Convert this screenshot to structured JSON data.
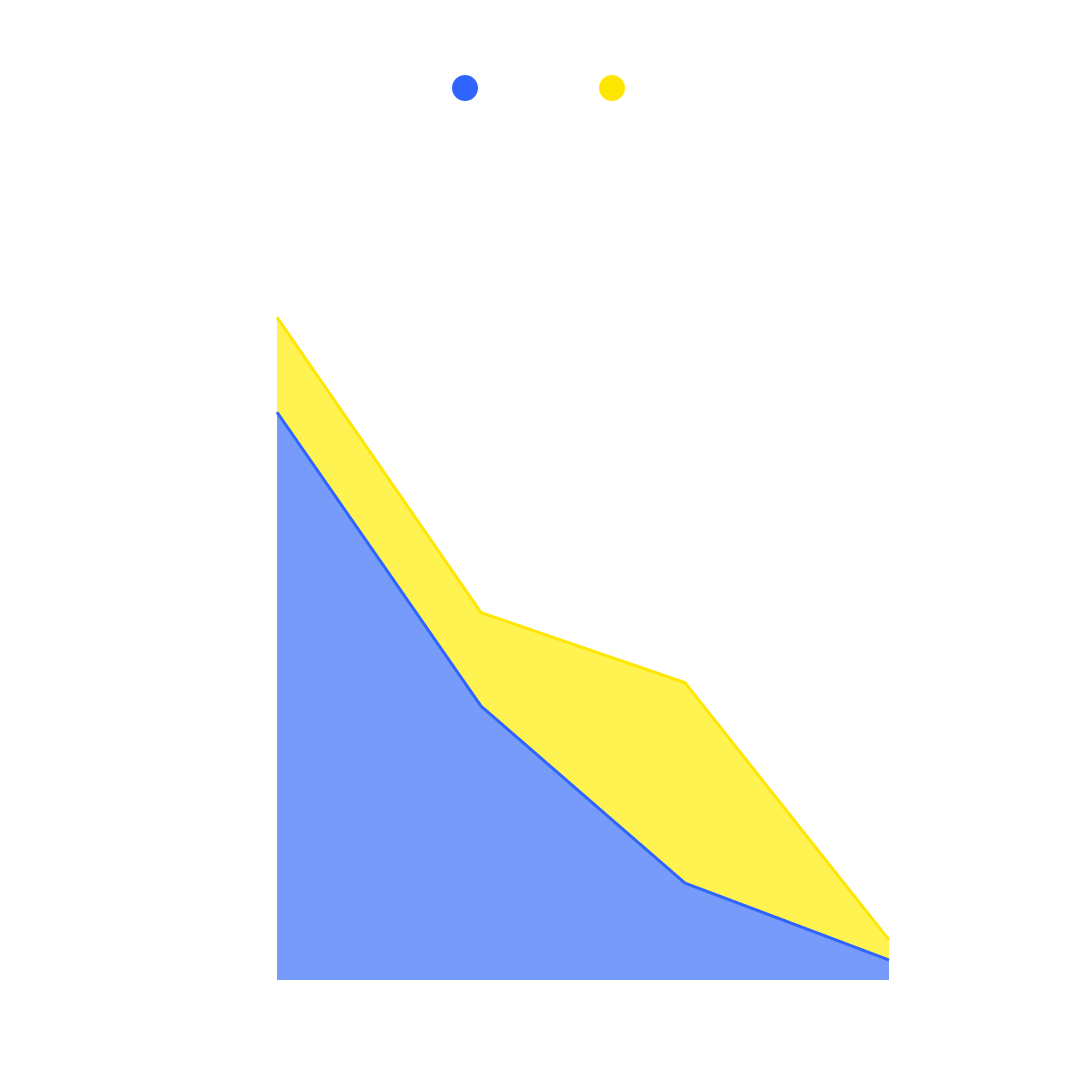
{
  "chart_data": {
    "type": "area",
    "stacked": true,
    "x": [
      0,
      1,
      2,
      3
    ],
    "ylim": [
      0,
      100
    ],
    "grid": false,
    "legend_position": "top-center",
    "series": [
      {
        "values": [
          85,
          41,
          14.5,
          3
        ],
        "color": "#2f64ff",
        "fill": "#769bfb"
      },
      {
        "values": [
          14.2,
          14,
          30,
          3
        ],
        "color": "#ffe600",
        "fill": "#fff352"
      }
    ]
  }
}
